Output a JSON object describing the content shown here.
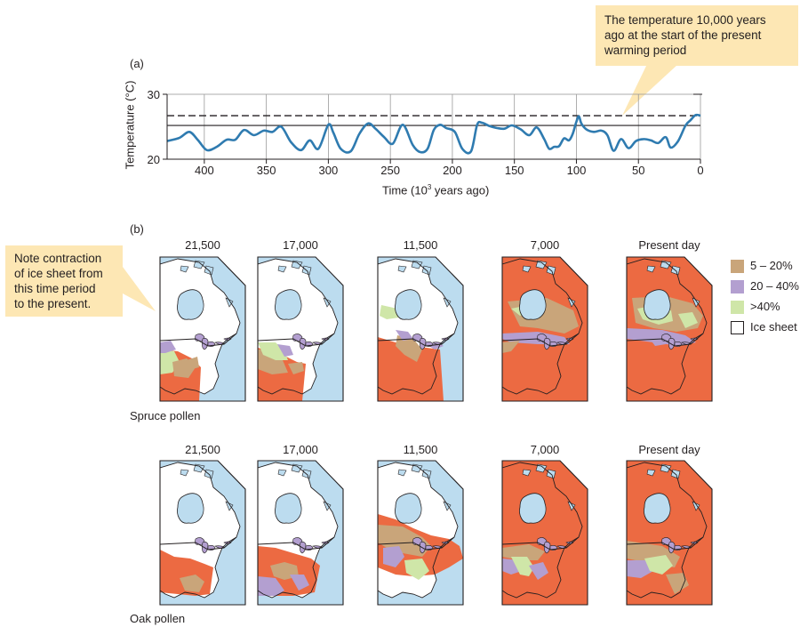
{
  "callouts": {
    "top": [
      "The temperature 10,000 years",
      "ago at the start of the present",
      "warming period"
    ],
    "left": [
      "Note contraction",
      "of ice sheet from",
      "this time period",
      "to the present."
    ]
  },
  "panel_a": {
    "label": "(a)",
    "ylabel": "Temperature (°C)",
    "xlabel_main": "Time (10",
    "xlabel_sup": "3",
    "xlabel_tail": " years ago)"
  },
  "chart_data": {
    "type": "line",
    "xlabel": "Time (10³ years ago)",
    "ylabel": "Temperature (°C)",
    "xlim": [
      430,
      0
    ],
    "ylim": [
      20,
      30
    ],
    "x_ticks": [
      "400",
      "350",
      "300",
      "250",
      "200",
      "150",
      "100",
      "50",
      "0"
    ],
    "y_ticks": [
      "30",
      "20"
    ],
    "reference_lines": {
      "dashed": 26.7,
      "solid": 25.2
    },
    "series": [
      {
        "color": "#2f7bb0",
        "x": [
          430,
          420,
          412,
          405,
          398,
          390,
          382,
          375,
          368,
          360,
          352,
          345,
          338,
          330,
          322,
          315,
          308,
          300,
          296,
          290,
          282,
          275,
          268,
          262,
          255,
          248,
          240,
          232,
          226,
          220,
          215,
          210,
          205,
          198,
          192,
          185,
          180,
          176,
          170,
          164,
          158,
          152,
          145,
          138,
          132,
          126,
          122,
          118,
          114,
          110,
          106,
          103,
          100,
          98,
          96,
          92,
          86,
          80,
          75,
          70,
          64,
          58,
          52,
          46,
          40,
          34,
          28,
          24,
          18,
          12,
          8,
          4,
          0
        ],
        "values": [
          22.8,
          23.3,
          24.2,
          22.9,
          21.4,
          21.9,
          23.0,
          23.0,
          24.5,
          23.7,
          24.4,
          24.2,
          25.0,
          22.6,
          21.4,
          22.9,
          21.6,
          25.3,
          24.1,
          21.6,
          21.2,
          23.9,
          25.5,
          24.7,
          23.4,
          22.4,
          25.3,
          22.2,
          21.1,
          21.6,
          24.5,
          25.3,
          24.8,
          24.2,
          21.6,
          21.2,
          25.3,
          25.6,
          25.1,
          24.8,
          24.7,
          25.2,
          24.6,
          23.7,
          24.9,
          23.1,
          21.6,
          21.9,
          22.0,
          23.2,
          22.9,
          23.9,
          25.8,
          26.6,
          25.5,
          24.6,
          24.2,
          24.4,
          23.7,
          21.3,
          23.1,
          21.7,
          22.8,
          23.1,
          22.9,
          22.5,
          23.4,
          21.8,
          22.8,
          25.2,
          26.0,
          26.8,
          26.7
        ]
      }
    ]
  },
  "panel_b": {
    "label": "(b)",
    "columns": [
      "21,500",
      "17,000",
      "11,500",
      "7,000",
      "Present day"
    ],
    "rows": [
      {
        "label": "Spruce pollen"
      },
      {
        "label": "Oak pollen"
      }
    ],
    "legend": [
      {
        "label": "5 – 20%",
        "color": "#c9a57a"
      },
      {
        "label": "20 – 40%",
        "color": "#b39fd0"
      },
      {
        "label": ">40%",
        "color": "#cfe6a8"
      },
      {
        "label": "Ice sheet",
        "color": "#ffffff"
      }
    ],
    "colors": {
      "ocean": "#bcdcef",
      "ice": "#ffffff",
      "land_low": "#c9a57a",
      "land_mid": "#b39fd0",
      "land_high": "#cfe6a8",
      "land_other": "#ec6a42",
      "border": "#231f20"
    }
  }
}
